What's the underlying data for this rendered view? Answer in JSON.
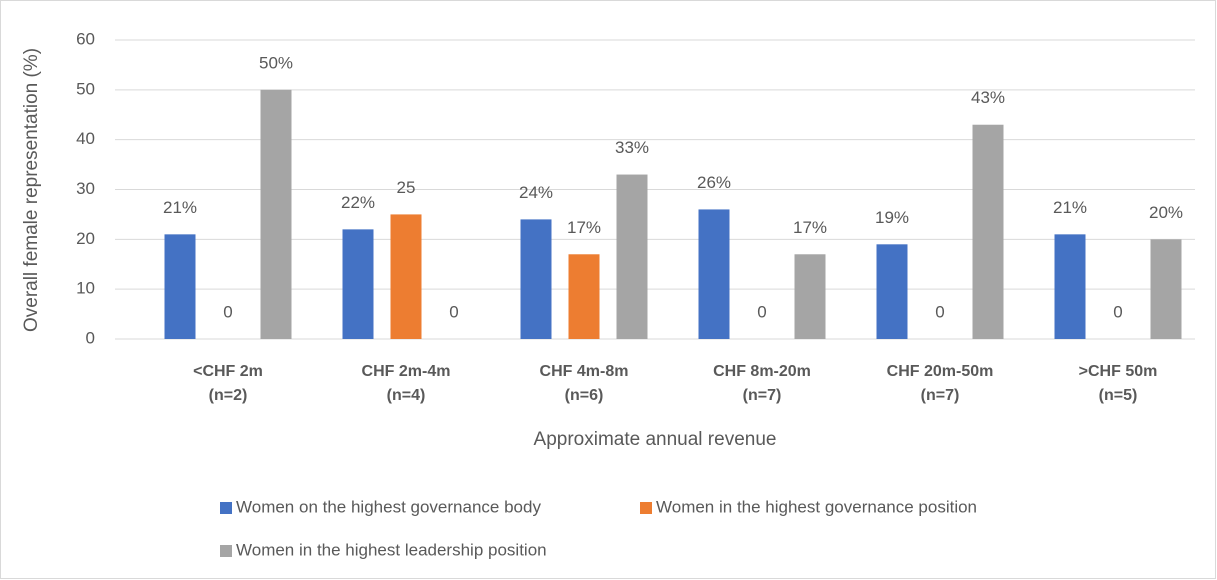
{
  "chart_data": {
    "type": "bar",
    "y_label": "Overall female representation (%)",
    "x_label": "Approximate annual revenue",
    "categories": [
      [
        "<CHF 2m",
        "(n=2)"
      ],
      [
        "CHF 2m-4m",
        "(n=4)"
      ],
      [
        "CHF 4m-8m",
        "(n=6)"
      ],
      [
        "CHF 8m-20m",
        "(n=7)"
      ],
      [
        "CHF 20m-50m",
        "(n=7)"
      ],
      [
        ">CHF 50m",
        "(n=5)"
      ]
    ],
    "series": [
      {
        "name": "Women on the highest governance body",
        "color": "#4472c4",
        "values": [
          21,
          22,
          24,
          26,
          19,
          21
        ],
        "value_labels": [
          "21%",
          "22%",
          "24%",
          "26%",
          "19%",
          "21%"
        ]
      },
      {
        "name": "Women in the highest governance position",
        "color": "#ed7d31",
        "values": [
          0,
          25,
          17,
          0,
          0,
          0
        ],
        "value_labels": [
          "0",
          "25",
          "17%",
          "0",
          "0",
          "0"
        ]
      },
      {
        "name": "Women in the highest leadership position",
        "color": "#a5a5a5",
        "values": [
          50,
          0,
          33,
          17,
          43,
          20
        ],
        "value_labels": [
          "50%",
          "0",
          "33%",
          "17%",
          "43%",
          "20%"
        ]
      }
    ],
    "ylim": [
      0,
      60
    ],
    "yticks": [
      0,
      10,
      20,
      30,
      40,
      50,
      60
    ],
    "grid": true,
    "legend": "bottom"
  }
}
